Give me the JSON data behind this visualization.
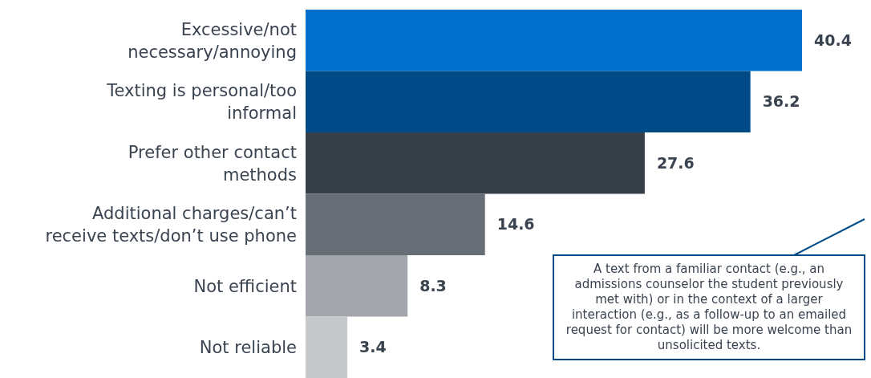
{
  "chart_data": {
    "type": "bar",
    "orientation": "horizontal",
    "data_labels": true,
    "categories": [
      "Excessive/not necessary/annoying",
      "Texting is personal/too informal",
      "Prefer other contact methods",
      "Additional charges/can’t receive texts/don’t use phone",
      "Not efficient",
      "Not reliable"
    ],
    "values": [
      40.4,
      36.2,
      27.6,
      14.6,
      8.3,
      3.4
    ],
    "colors": [
      "#0070cc",
      "#004b87",
      "#363e48",
      "#676e75",
      "#a2a5a9",
      "#c6c9cc"
    ],
    "annotations": [
      "A text from a familiar contact (e.g., an admissions counselor the student previously met with) or in the context of a larger interaction (e.g., as a follow-up to an emailed request for contact) will be more welcome than unsolicited texts."
    ]
  }
}
